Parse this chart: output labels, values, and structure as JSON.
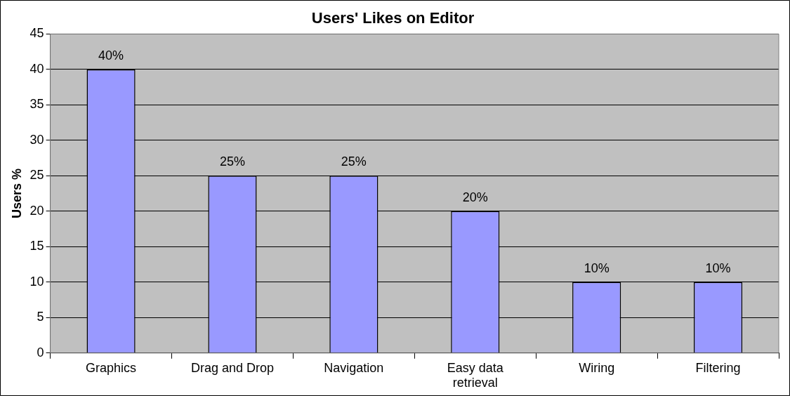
{
  "chart_data": {
    "type": "bar",
    "title": "Users' Likes on Editor",
    "ylabel": "Users %",
    "categories": [
      "Graphics",
      "Drag and Drop",
      "Navigation",
      "Easy data retrieval",
      "Wiring",
      "Filtering"
    ],
    "values": [
      40,
      25,
      25,
      20,
      10,
      10
    ],
    "value_labels": [
      "40%",
      "25%",
      "25%",
      "20%",
      "10%",
      "10%"
    ],
    "color": "#9999ff",
    "ylim": [
      0,
      45
    ],
    "yticks": [
      0,
      5,
      10,
      15,
      20,
      25,
      30,
      35,
      40,
      45
    ],
    "grid": "y",
    "legend": false
  }
}
